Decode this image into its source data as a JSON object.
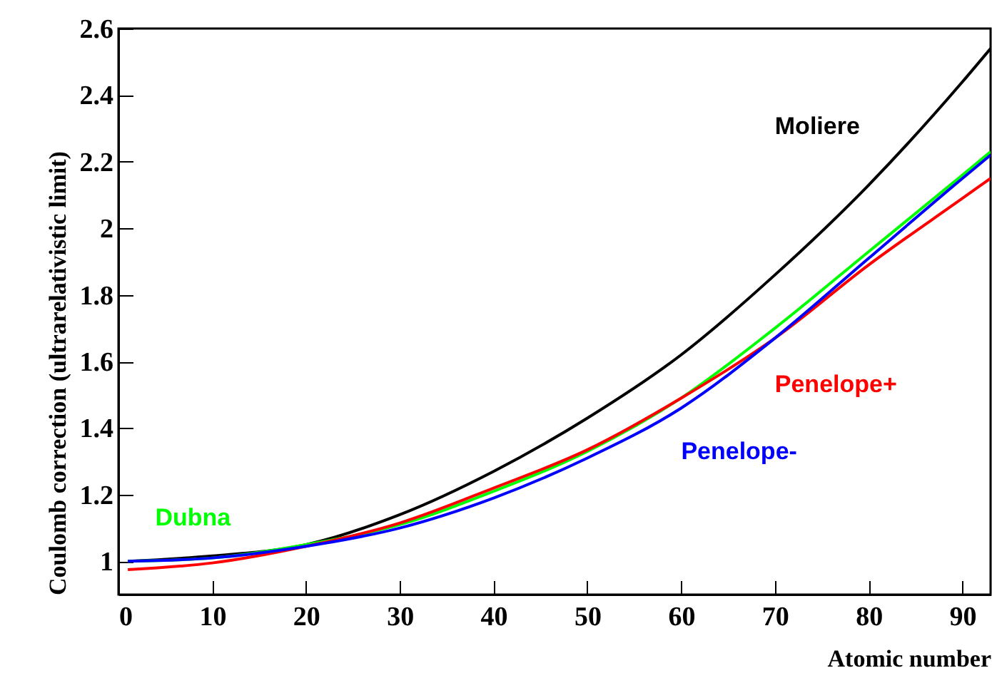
{
  "chart_data": {
    "type": "line",
    "xlabel": "Atomic number",
    "ylabel": "Coulomb correction (ultrarelativistic limit)",
    "x": [
      1,
      10,
      20,
      30,
      40,
      50,
      60,
      70,
      80,
      90,
      93
    ],
    "series": [
      {
        "name": "Moliere",
        "color": "#000000",
        "values": [
          1.0,
          1.016,
          1.05,
          1.14,
          1.27,
          1.43,
          1.62,
          1.86,
          2.13,
          2.44,
          2.54
        ]
      },
      {
        "name": "Dubna",
        "color": "#00ff00",
        "values": [
          1.0,
          1.01,
          1.05,
          1.11,
          1.21,
          1.33,
          1.49,
          1.7,
          1.93,
          2.16,
          2.23
        ]
      },
      {
        "name": "Penelope+",
        "color": "#ff0000",
        "values": [
          0.975,
          0.995,
          1.045,
          1.115,
          1.22,
          1.335,
          1.49,
          1.67,
          1.89,
          2.09,
          2.15
        ]
      },
      {
        "name": "Penelope-",
        "color": "#0000ff",
        "values": [
          1.0,
          1.01,
          1.045,
          1.1,
          1.19,
          1.31,
          1.46,
          1.67,
          1.91,
          2.15,
          2.22
        ]
      }
    ],
    "xlim": [
      0,
      93
    ],
    "ylim": [
      0.9,
      2.6
    ],
    "xticks": [
      0,
      10,
      20,
      30,
      40,
      50,
      60,
      70,
      80,
      90
    ],
    "yticks": [
      1,
      1.2,
      1.4,
      1.6,
      1.8,
      2,
      2.2,
      2.4,
      2.6
    ],
    "grid": false,
    "legend": false
  }
}
